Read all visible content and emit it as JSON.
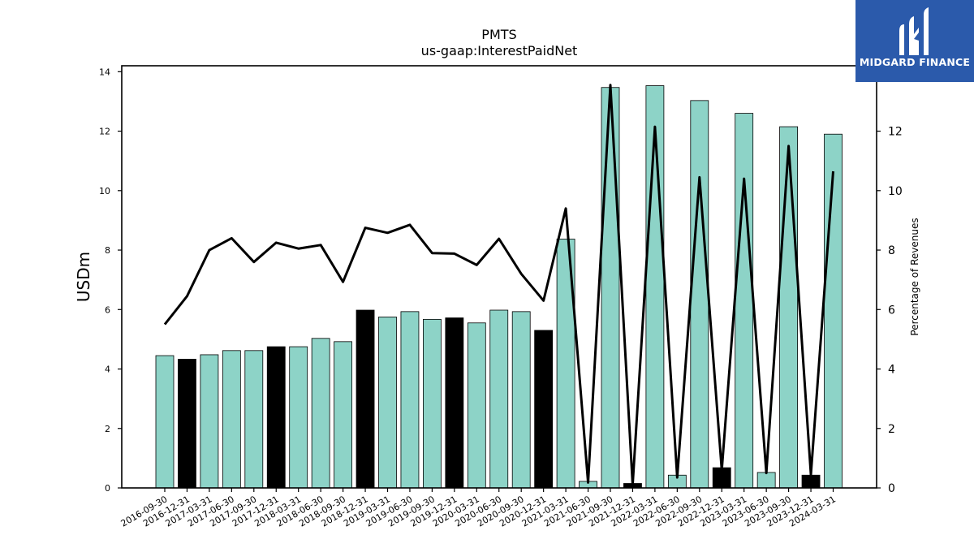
{
  "chart_data": {
    "type": "bar+line",
    "title": "PMTS",
    "subtitle": "us-gaap:InterestPaidNet",
    "ylabel": "USDm",
    "y2label": "Percentage of Revenues",
    "ylim": [
      0,
      14.2
    ],
    "y2lim": [
      0,
      14.2
    ],
    "yticks": [
      0,
      2,
      4,
      6,
      8,
      10,
      12,
      14
    ],
    "y2ticks": [
      0,
      2,
      4,
      6,
      8,
      10,
      12
    ],
    "categories": [
      "2016-09-30",
      "2016-12-31",
      "2017-03-31",
      "2017-06-30",
      "2017-09-30",
      "2017-12-31",
      "2018-03-31",
      "2018-06-30",
      "2018-09-30",
      "2018-12-31",
      "2019-03-31",
      "2019-06-30",
      "2019-09-30",
      "2019-12-31",
      "2020-03-31",
      "2020-06-30",
      "2020-09-30",
      "2020-12-31",
      "2021-03-31",
      "2021-06-30",
      "2021-09-30",
      "2021-12-31",
      "2022-03-31",
      "2022-06-30",
      "2022-09-30",
      "2022-12-31",
      "2023-03-31",
      "2023-06-30",
      "2023-09-30",
      "2023-12-31",
      "2024-03-31"
    ],
    "series": [
      {
        "kind": "bar",
        "values": [
          4.45,
          4.33,
          4.48,
          4.62,
          4.62,
          4.75,
          4.75,
          5.03,
          4.92,
          5.98,
          5.75,
          5.93,
          5.67,
          5.72,
          5.55,
          5.98,
          5.93,
          5.3,
          8.37,
          0.22,
          13.47,
          0.15,
          13.53,
          0.43,
          13.03,
          0.68,
          12.6,
          0.52,
          12.15,
          0.43,
          11.9
        ],
        "highlight": [
          false,
          true,
          false,
          false,
          false,
          true,
          false,
          false,
          false,
          true,
          false,
          false,
          false,
          true,
          false,
          false,
          false,
          true,
          false,
          false,
          false,
          true,
          false,
          false,
          false,
          true,
          false,
          false,
          false,
          true,
          false
        ]
      },
      {
        "kind": "line",
        "axis": "right",
        "values": [
          5.5,
          6.45,
          8.0,
          8.4,
          7.6,
          8.25,
          8.05,
          8.17,
          6.93,
          8.75,
          8.58,
          8.85,
          7.9,
          7.88,
          7.5,
          8.38,
          7.2,
          6.3,
          9.4,
          0.18,
          13.55,
          0.1,
          12.15,
          0.35,
          10.45,
          0.6,
          10.4,
          0.5,
          11.5,
          0.45,
          10.65
        ]
      }
    ],
    "colors": {
      "bar": "#8dd3c7",
      "bar_highlight": "#000000",
      "line": "#000000"
    }
  },
  "logo": {
    "text": "MIDGARD FINANCE",
    "color": "#2b5aab"
  }
}
